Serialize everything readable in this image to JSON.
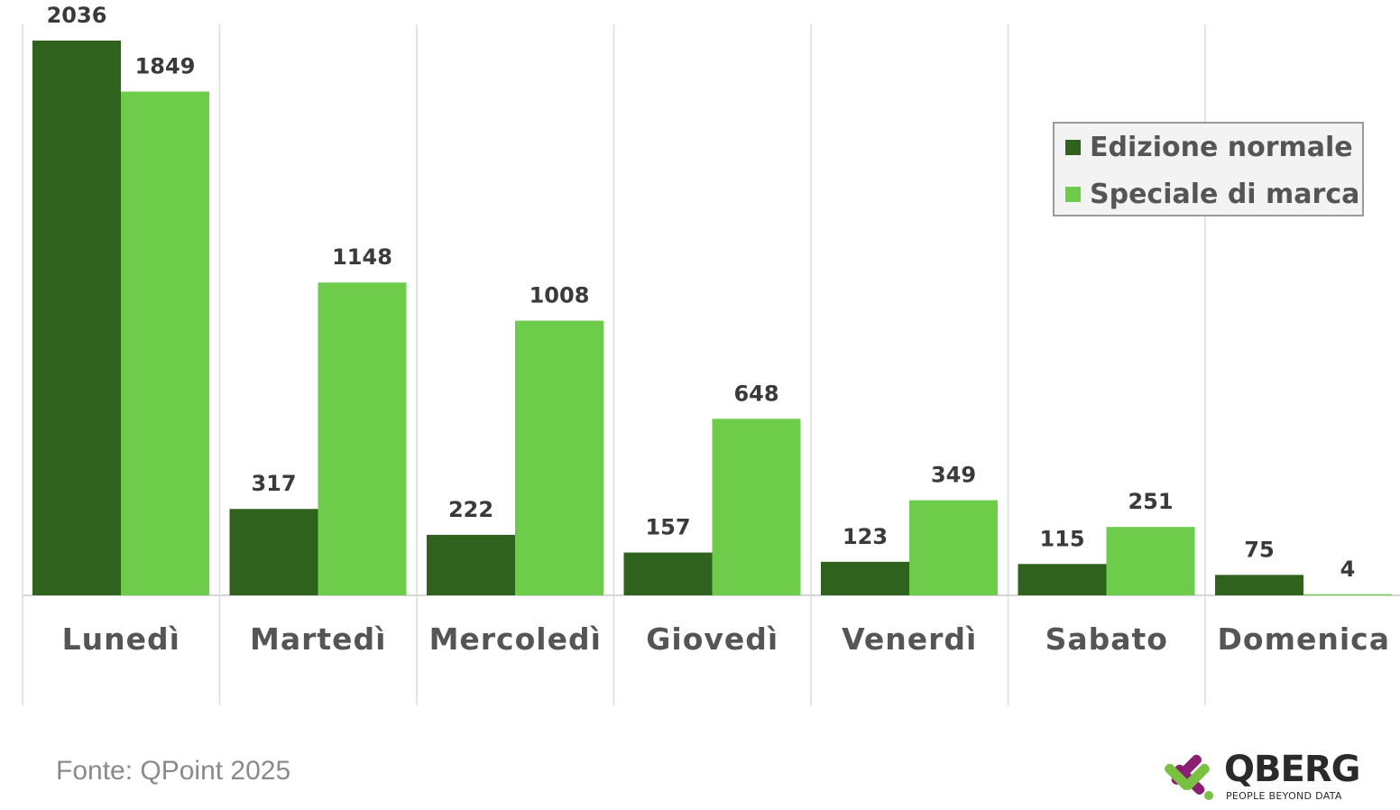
{
  "chart_data": {
    "type": "bar",
    "categories": [
      "Lunedì",
      "Martedì",
      "Mercoledì",
      "Giovedì",
      "Venerdì",
      "Sabato",
      "Domenica"
    ],
    "series": [
      {
        "name": "Edizione normale",
        "values": [
          2036,
          317,
          222,
          157,
          123,
          115,
          75
        ],
        "color": "#2f631d"
      },
      {
        "name": "Speciale di marca",
        "values": [
          1849,
          1148,
          1008,
          648,
          349,
          251,
          4
        ],
        "color": "#6dcd4b"
      }
    ],
    "title": "",
    "xlabel": "",
    "ylabel": "",
    "ylim": [
      0,
      2036
    ],
    "grid": "vertical separators",
    "legend_position": "top-right"
  },
  "legend": {
    "normal_label": "Edizione normale",
    "special_label": "Speciale di marca"
  },
  "footer": {
    "source": "Fonte: QPoint 2025",
    "logo_name": "QBERG",
    "logo_tagline": "PEOPLE BEYOND DATA"
  }
}
